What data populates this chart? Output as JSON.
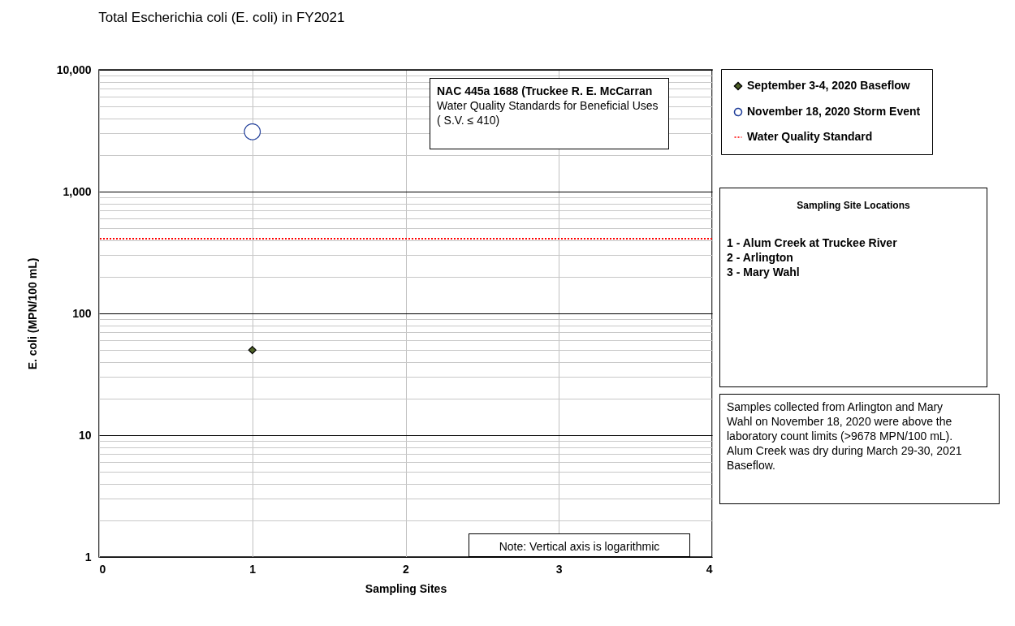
{
  "chart_data": {
    "type": "scatter",
    "title": "Total Escherichia coli (E. coli)  in FY2021",
    "xlabel": "Sampling Sites",
    "ylabel": "E. coli  (MPN/100 mL)",
    "series": [
      {
        "name": "September 3-4, 2020 Baseflow",
        "color": "#4f6228",
        "marker": "diamond",
        "x": [
          1
        ],
        "values": [
          50
        ]
      },
      {
        "name": "November 18, 2020 Storm Event",
        "color": "#1f3d99",
        "marker": "circle",
        "x": [
          1
        ],
        "values": [
          3100
        ]
      }
    ],
    "ref_lines": [
      {
        "axis": "y",
        "value": 410,
        "label": "Water Quality Standard",
        "color": "#ff0000",
        "line_style": "dotted"
      }
    ],
    "xlim": [
      0,
      4
    ],
    "xticks": [
      0,
      1,
      2,
      3,
      4
    ],
    "ylim": [
      1,
      10000
    ],
    "yticks": [
      1,
      10,
      100,
      {
        "value": 1000,
        "label": "1,000"
      },
      {
        "value": 10000,
        "label": "10,000"
      }
    ],
    "log": true,
    "grid": true,
    "legend": "top right",
    "annotations": [
      "NAC 445a 1688 (Truckee R. E. McCarran",
      "Water Quality Standards for Beneficial Uses ( S.V. ≤ 410)",
      "Sampling Site Locations",
      "1 - Alum Creek at Truckee River",
      "2 - Arlington",
      "3 - Mary Wahl",
      "Samples collected from Arlington and Mary Wahl on November 18, 2020 were above the laboratory count limits (>9678 MPN/100 mL).  Alum Creek was dry during March 29-30, 2021 Baseflow.",
      "Note: Vertical axis is logarithmic"
    ]
  }
}
